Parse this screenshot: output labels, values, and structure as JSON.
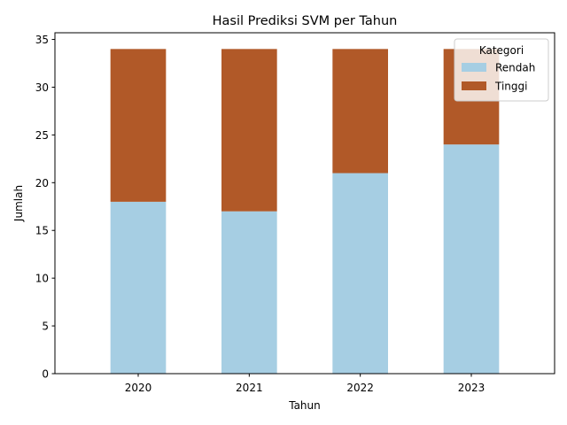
{
  "chart_data": {
    "type": "bar",
    "stacked": true,
    "title": "Hasil Prediksi SVM per Tahun",
    "xlabel": "Tahun",
    "ylabel": "Jumlah",
    "categories": [
      "2020",
      "2021",
      "2022",
      "2023"
    ],
    "series": [
      {
        "name": "Rendah",
        "values": [
          18,
          17,
          21,
          24
        ],
        "color": "#a6cee3"
      },
      {
        "name": "Tinggi",
        "values": [
          16,
          17,
          13,
          10
        ],
        "color": "#b15928"
      }
    ],
    "ylim": [
      0,
      35.7
    ],
    "yticks": [
      0,
      5,
      10,
      15,
      20,
      25,
      30,
      35
    ],
    "legend": {
      "title": "Kategori",
      "position": "top-right"
    },
    "grid": false
  }
}
